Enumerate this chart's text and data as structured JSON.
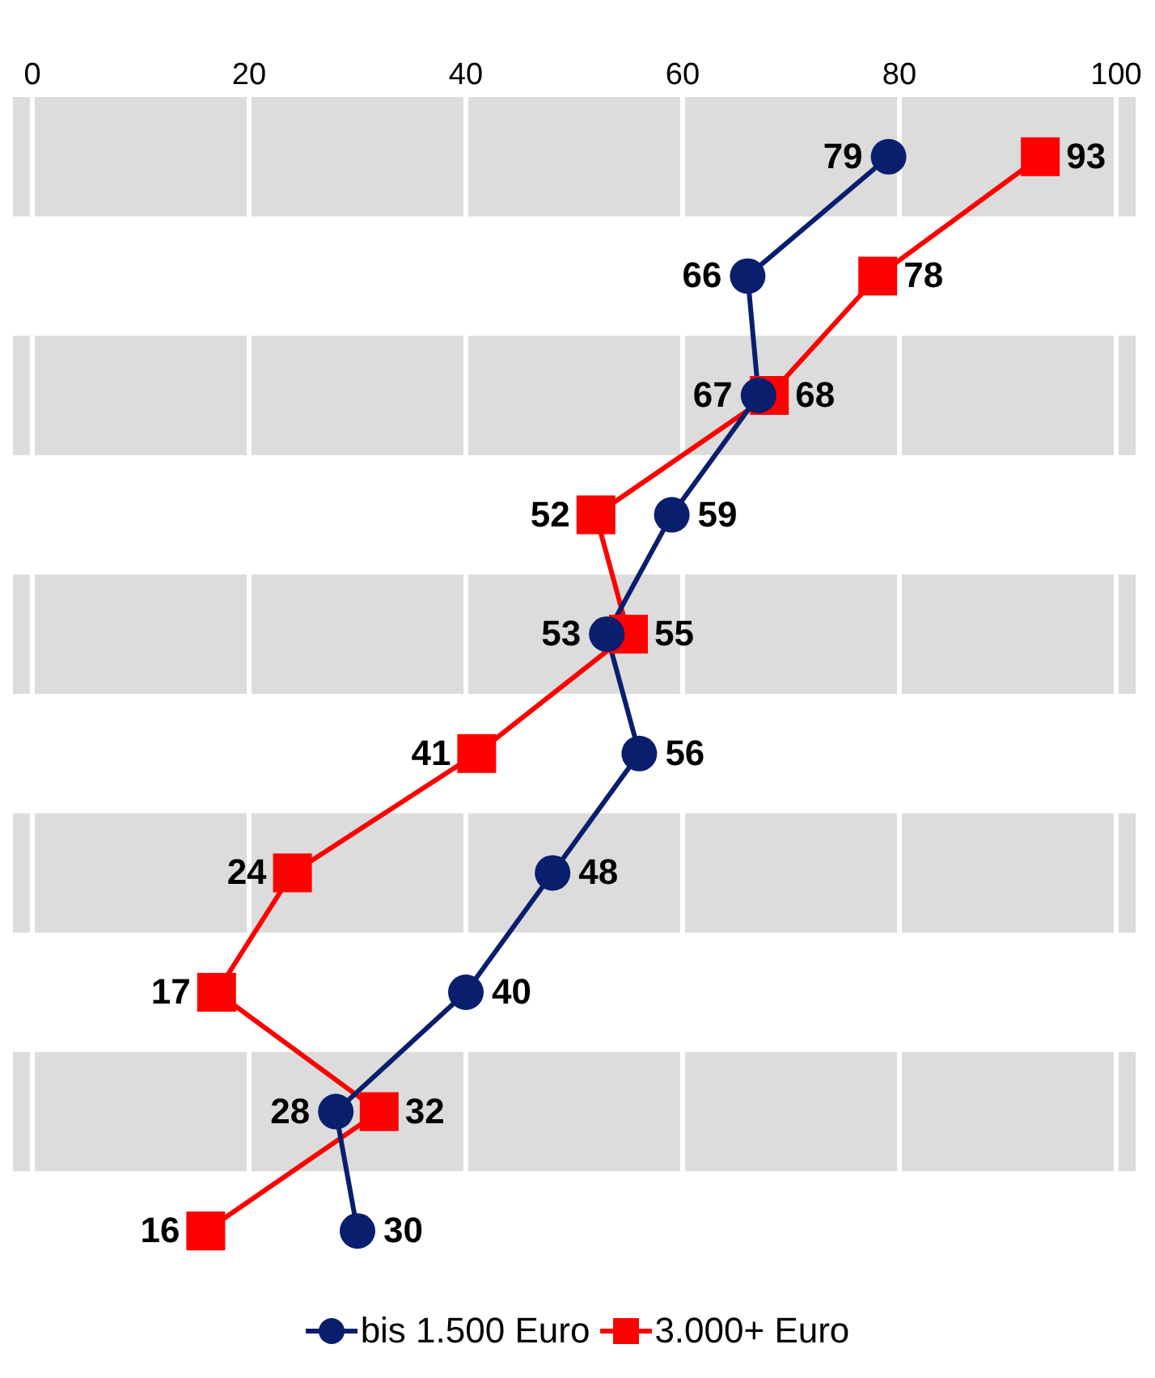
{
  "chart_data": {
    "type": "line",
    "categories": [
      null,
      null,
      null,
      null,
      null,
      null,
      null,
      null,
      null,
      null
    ],
    "series": [
      {
        "name": "bis 1.500 Euro",
        "color": "#0a1e6e",
        "marker": "circle",
        "values": [
          79,
          66,
          67,
          59,
          53,
          56,
          48,
          40,
          28,
          30
        ]
      },
      {
        "name": "3.000+ Euro",
        "color": "#ff0000",
        "marker": "square",
        "values": [
          93,
          78,
          68,
          52,
          55,
          41,
          24,
          17,
          32,
          16
        ]
      }
    ],
    "orientation": "horizontal",
    "xlim": [
      0,
      100
    ],
    "xticks": [
      0,
      20,
      40,
      60,
      80,
      100
    ],
    "grid": "x",
    "legend": "bottom",
    "data_labels": true,
    "tick_labels": "x"
  }
}
